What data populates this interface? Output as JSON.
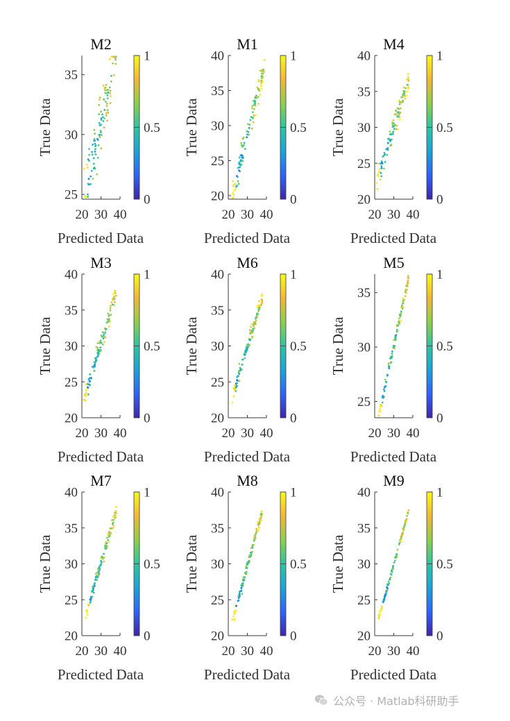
{
  "figure": {
    "xlabel": "Predicted Data",
    "ylabel": "True Data",
    "colorbar_ticks": [
      "0",
      "0.5",
      "1"
    ],
    "colormap": [
      "#3e26a8",
      "#2f63f8",
      "#1ca3d8",
      "#2ec4a0",
      "#8ecf4e",
      "#f2b736",
      "#f9fb15"
    ]
  },
  "watermark": {
    "text": "公众号 · Matlab科研助手",
    "icon": "wechat-icon"
  },
  "chart_data": [
    {
      "type": "scatter",
      "title": "M2",
      "xticks": [
        "20",
        "30",
        "40"
      ],
      "yticks": [
        "25",
        "30",
        "35"
      ],
      "xlim": [
        20,
        40
      ],
      "ylim": [
        24.6,
        36.6
      ],
      "yticks_num": [
        25,
        30,
        35
      ],
      "xticks_num": [
        20,
        30,
        40
      ],
      "colorbar_range": [
        0,
        1
      ],
      "x_range": [
        21,
        38
      ],
      "y_range": [
        24.6,
        36.6
      ],
      "spread": 2.3,
      "n_points": 115
    },
    {
      "type": "scatter",
      "title": "M1",
      "xticks": [
        "20",
        "30",
        "40"
      ],
      "yticks": [
        "20",
        "25",
        "30",
        "35",
        "40"
      ],
      "xlim": [
        20,
        40
      ],
      "ylim": [
        19.5,
        40
      ],
      "yticks_num": [
        20,
        25,
        30,
        35,
        40
      ],
      "xticks_num": [
        20,
        30,
        40
      ],
      "colorbar_range": [
        0,
        1
      ],
      "x_range": [
        22,
        39
      ],
      "y_range": [
        19.8,
        38.8
      ],
      "spread": 1.8,
      "n_points": 115
    },
    {
      "type": "scatter",
      "title": "M4",
      "xticks": [
        "20",
        "30",
        "40"
      ],
      "yticks": [
        "20",
        "25",
        "30",
        "35",
        "40"
      ],
      "xlim": [
        20,
        40
      ],
      "ylim": [
        20,
        40
      ],
      "yticks_num": [
        20,
        25,
        30,
        35,
        40
      ],
      "xticks_num": [
        20,
        30,
        40
      ],
      "colorbar_range": [
        0,
        1
      ],
      "x_range": [
        21,
        38
      ],
      "y_range": [
        22.3,
        36.8
      ],
      "spread": 1.4,
      "n_points": 115
    },
    {
      "type": "scatter",
      "title": "M3",
      "xticks": [
        "20",
        "30",
        "40"
      ],
      "yticks": [
        "20",
        "25",
        "30",
        "35",
        "40"
      ],
      "xlim": [
        20,
        40
      ],
      "ylim": [
        20,
        40
      ],
      "yticks_num": [
        20,
        25,
        30,
        35,
        40
      ],
      "xticks_num": [
        20,
        30,
        40
      ],
      "colorbar_range": [
        0,
        1
      ],
      "x_range": [
        21,
        38
      ],
      "y_range": [
        22.3,
        37.2
      ],
      "spread": 1.4,
      "n_points": 115
    },
    {
      "type": "scatter",
      "title": "M6",
      "xticks": [
        "20",
        "30",
        "40"
      ],
      "yticks": [
        "20",
        "25",
        "30",
        "35",
        "40"
      ],
      "xlim": [
        20,
        40
      ],
      "ylim": [
        20,
        40
      ],
      "yticks_num": [
        20,
        25,
        30,
        35,
        40
      ],
      "xticks_num": [
        20,
        30,
        40
      ],
      "colorbar_range": [
        0,
        1
      ],
      "x_range": [
        22,
        38
      ],
      "y_range": [
        22.8,
        36.8
      ],
      "spread": 0.9,
      "n_points": 115
    },
    {
      "type": "scatter",
      "title": "M5",
      "xticks": [
        "20",
        "30",
        "40"
      ],
      "yticks": [
        "25",
        "30",
        "35"
      ],
      "xlim": [
        20,
        40
      ],
      "ylim": [
        23.5,
        36.7
      ],
      "yticks_num": [
        25,
        30,
        35
      ],
      "xticks_num": [
        20,
        30,
        40
      ],
      "colorbar_range": [
        0,
        1
      ],
      "x_range": [
        22,
        38
      ],
      "y_range": [
        23.6,
        36.6
      ],
      "spread": 0.6,
      "n_points": 115
    },
    {
      "type": "scatter",
      "title": "M7",
      "xticks": [
        "20",
        "30",
        "40"
      ],
      "yticks": [
        "20",
        "25",
        "30",
        "35",
        "40"
      ],
      "xlim": [
        20,
        40
      ],
      "ylim": [
        20,
        40
      ],
      "yticks_num": [
        20,
        25,
        30,
        35,
        40
      ],
      "xticks_num": [
        20,
        30,
        40
      ],
      "colorbar_range": [
        0,
        1
      ],
      "x_range": [
        22,
        38
      ],
      "y_range": [
        22.8,
        37.3
      ],
      "spread": 0.8,
      "n_points": 115
    },
    {
      "type": "scatter",
      "title": "M8",
      "xticks": [
        "20",
        "30",
        "40"
      ],
      "yticks": [
        "20",
        "25",
        "30",
        "35",
        "40"
      ],
      "xlim": [
        20,
        40
      ],
      "ylim": [
        20,
        40
      ],
      "yticks_num": [
        20,
        25,
        30,
        35,
        40
      ],
      "xticks_num": [
        20,
        30,
        40
      ],
      "colorbar_range": [
        0,
        1
      ],
      "x_range": [
        22,
        38
      ],
      "y_range": [
        21.8,
        37.5
      ],
      "spread": 0.7,
      "n_points": 115
    },
    {
      "type": "scatter",
      "title": "M9",
      "xticks": [
        "20",
        "30",
        "40"
      ],
      "yticks": [
        "20",
        "25",
        "30",
        "35",
        "40"
      ],
      "xlim": [
        20,
        40
      ],
      "ylim": [
        20,
        40
      ],
      "yticks_num": [
        20,
        25,
        30,
        35,
        40
      ],
      "xticks_num": [
        20,
        30,
        40
      ],
      "colorbar_range": [
        0,
        1
      ],
      "x_range": [
        22,
        38
      ],
      "y_range": [
        22.3,
        37.6
      ],
      "spread": 0.4,
      "n_points": 115
    }
  ]
}
